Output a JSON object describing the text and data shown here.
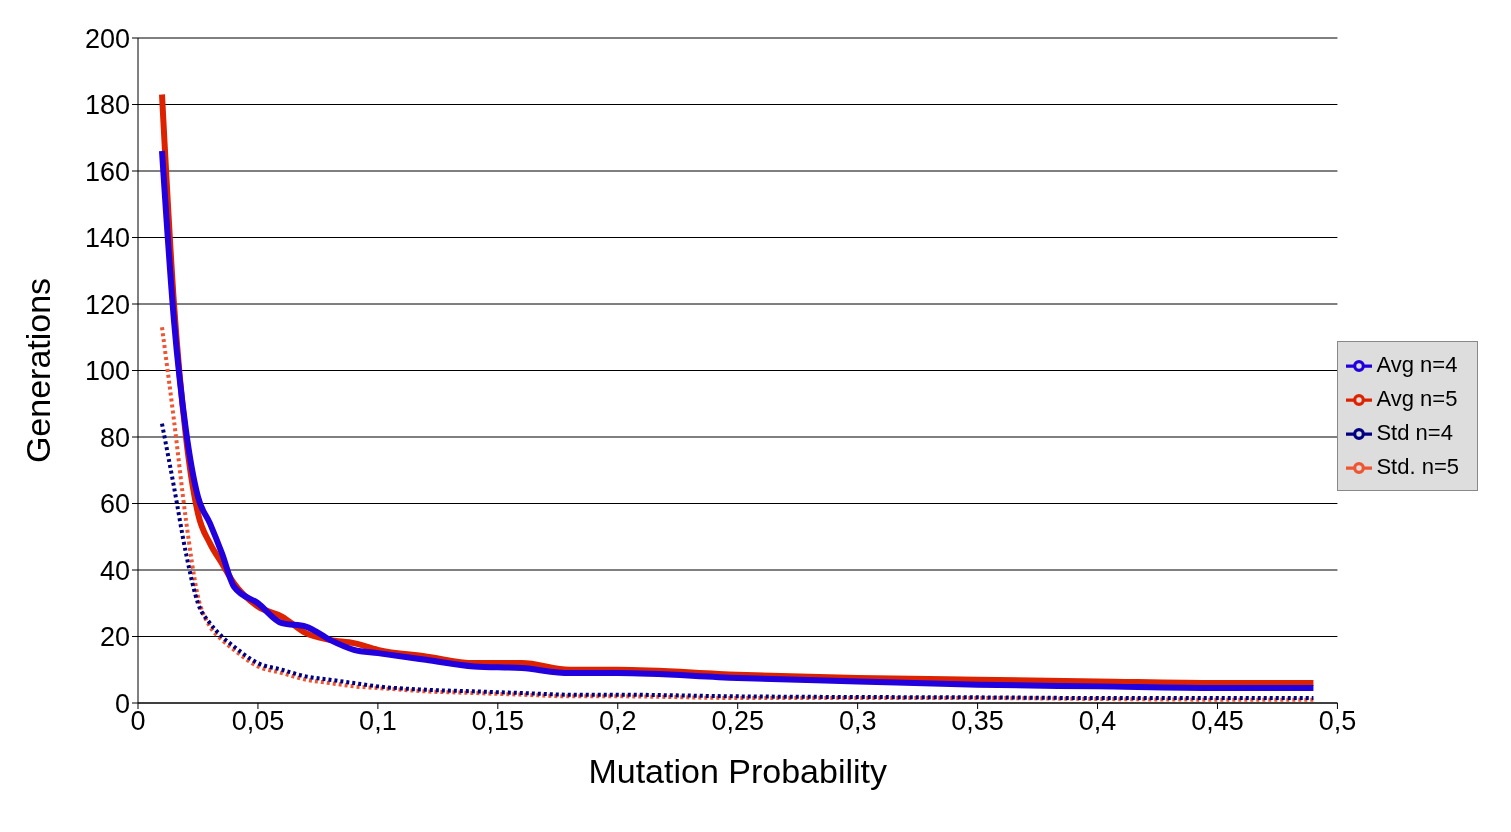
{
  "chart_data": {
    "type": "line",
    "xlabel": "Mutation Probability",
    "ylabel": "Generations",
    "x": [
      0.01,
      0.015,
      0.02,
      0.025,
      0.03,
      0.035,
      0.04,
      0.05,
      0.06,
      0.07,
      0.08,
      0.09,
      0.1,
      0.12,
      0.14,
      0.16,
      0.18,
      0.2,
      0.25,
      0.3,
      0.35,
      0.4,
      0.45,
      0.49
    ],
    "series": [
      {
        "name": "Avg n=5",
        "color": "#dd2200",
        "line_style": "solid",
        "values": [
          183,
          120,
          80,
          57,
          48,
          42,
          36,
          29,
          26,
          21,
          19,
          18,
          16,
          14,
          12,
          12,
          10,
          10,
          8.5,
          7.5,
          7,
          6.5,
          6,
          6
        ]
      },
      {
        "name": "Std. n=5",
        "color": "#ee5533",
        "line_style": "dotted",
        "values": [
          113,
          85,
          55,
          32,
          23,
          19,
          16,
          11,
          9,
          7,
          6,
          5,
          4.5,
          3.5,
          3,
          2.5,
          2,
          2,
          1.5,
          1.5,
          1.5,
          1.2,
          1,
          1
        ]
      },
      {
        "name": "Avg n=4",
        "color": "#2200dd",
        "line_style": "solid",
        "values": [
          166,
          115,
          82,
          62,
          54,
          45,
          35,
          30,
          24,
          23,
          19,
          16,
          15,
          13,
          11,
          10.5,
          9,
          9,
          7.5,
          6.5,
          5.5,
          5,
          4.5,
          4.5
        ]
      },
      {
        "name": "Std n=4",
        "color": "#000080",
        "line_style": "dotted",
        "values": [
          84,
          65,
          45,
          30,
          24,
          20,
          17,
          12,
          10,
          8,
          7,
          6,
          5,
          4,
          3.5,
          3,
          2.5,
          2.5,
          2,
          1.8,
          1.7,
          1.5,
          1.5,
          1.5
        ]
      }
    ],
    "xlim": [
      0,
      0.5
    ],
    "xticks": [
      0,
      {
        "value": 0.05,
        "label": "0,05"
      },
      {
        "value": 0.1,
        "label": "0,1"
      },
      {
        "value": 0.15,
        "label": "0,15"
      },
      {
        "value": 0.2,
        "label": "0,2"
      },
      {
        "value": 0.25,
        "label": "0,25"
      },
      {
        "value": 0.3,
        "label": "0,3"
      },
      {
        "value": 0.35,
        "label": "0,35"
      },
      {
        "value": 0.4,
        "label": "0,4"
      },
      {
        "value": 0.45,
        "label": "0,45"
      },
      {
        "value": 0.5,
        "label": "0,5"
      }
    ],
    "ylim": [
      0,
      200
    ],
    "yticks": [
      0,
      20,
      40,
      60,
      80,
      100,
      120,
      140,
      160,
      180,
      200
    ],
    "grid": "y",
    "legend": "right",
    "marker": "none"
  }
}
